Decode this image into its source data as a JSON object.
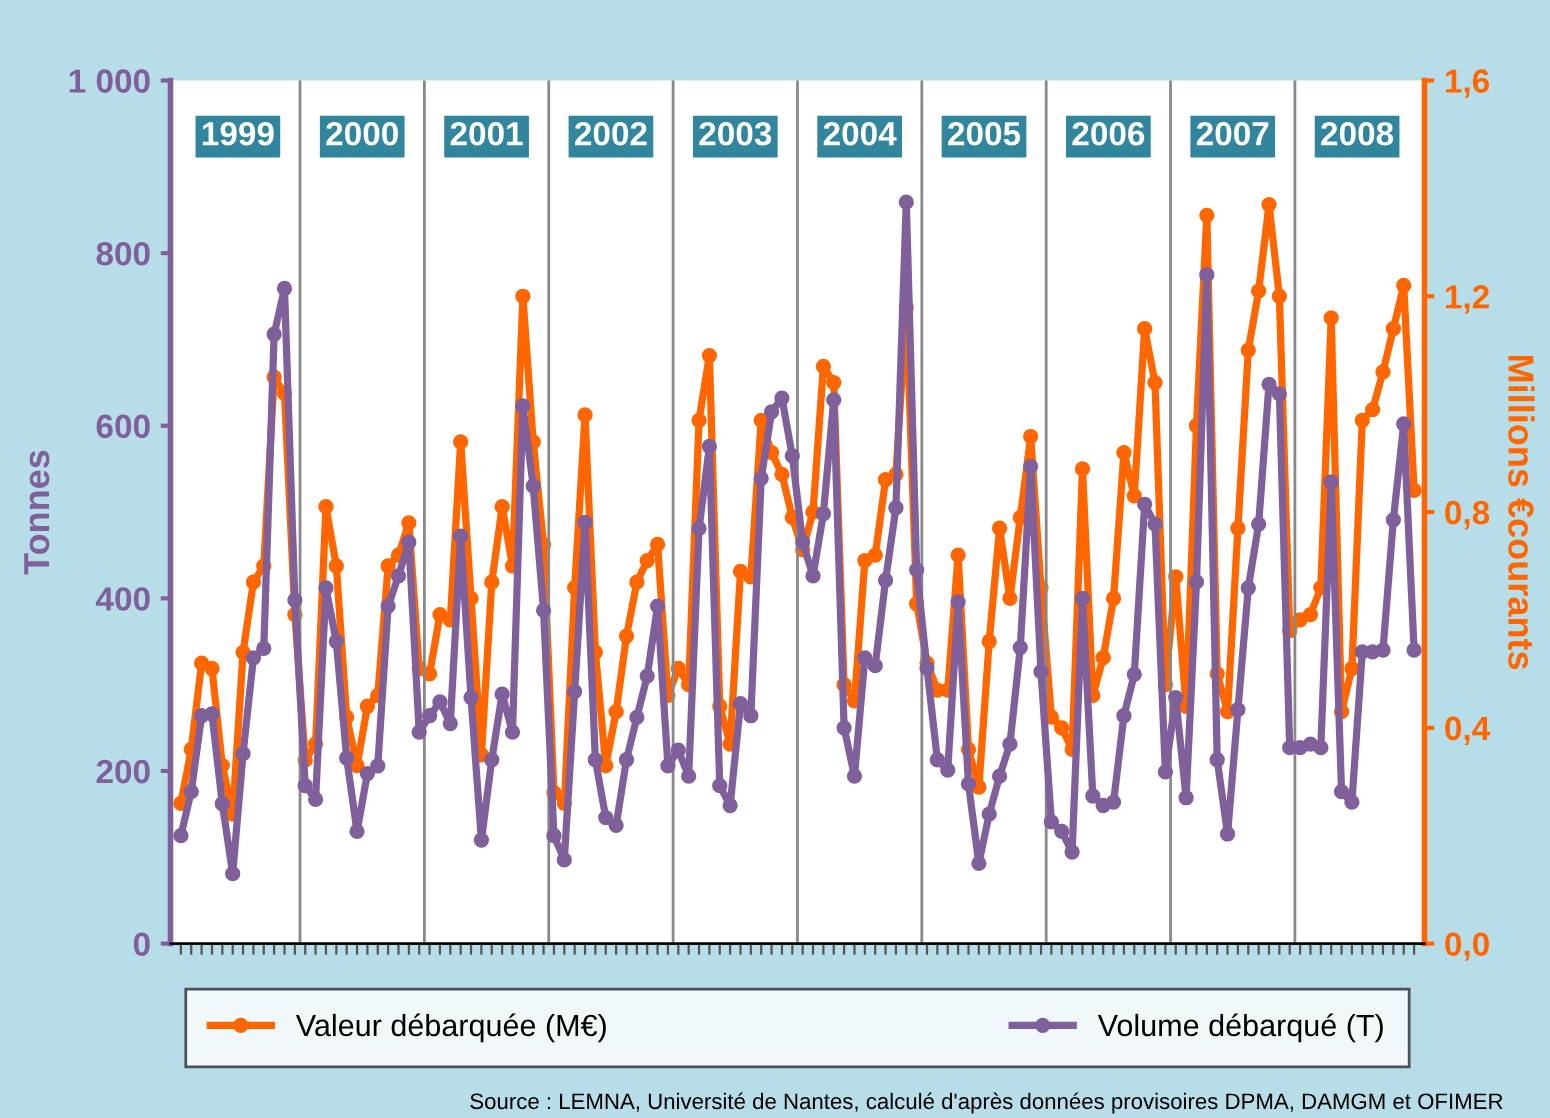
{
  "chart_data": {
    "type": "line",
    "categories": [
      null,
      null,
      null,
      null,
      null,
      null,
      null,
      null,
      null,
      null,
      null,
      null,
      null,
      null,
      null,
      null,
      null,
      null,
      null,
      null,
      null,
      null,
      null,
      null,
      null,
      null,
      null,
      null,
      null,
      null,
      null,
      null,
      null,
      null,
      null,
      null,
      null,
      null,
      null,
      null,
      null,
      null,
      null,
      null,
      null,
      null,
      null,
      null,
      null,
      null,
      null,
      null,
      null,
      null,
      null,
      null,
      null,
      null,
      null,
      null,
      null,
      null,
      null,
      null,
      null,
      null,
      null,
      null,
      null,
      null,
      null,
      null,
      null,
      null,
      null,
      null,
      null,
      null,
      null,
      null,
      null,
      null,
      null,
      null,
      null,
      null,
      null,
      null,
      null,
      null,
      null,
      null,
      null,
      null,
      null,
      null,
      null,
      null,
      null,
      null,
      null,
      null,
      null,
      null,
      null,
      null,
      null,
      null,
      null,
      null,
      null,
      null,
      null,
      null,
      null,
      null,
      null,
      null,
      null,
      null
    ],
    "series": [
      {
        "name": "Valeur débarquée (M€)",
        "color": "#ff6600",
        "axis": "y2",
        "values": [
          0.26,
          0.36,
          0.52,
          0.51,
          0.33,
          0.24,
          0.54,
          0.67,
          0.7,
          1.05,
          1.02,
          0.61,
          0.34,
          0.37,
          0.81,
          0.7,
          0.42,
          0.33,
          0.44,
          0.46,
          0.7,
          0.72,
          0.78,
          0.51,
          0.5,
          0.61,
          0.6,
          0.93,
          0.64,
          0.35,
          0.67,
          0.81,
          0.7,
          1.2,
          0.93,
          0.74,
          0.28,
          0.26,
          0.66,
          0.98,
          0.54,
          0.33,
          0.43,
          0.57,
          0.67,
          0.71,
          0.74,
          0.46,
          0.51,
          0.48,
          0.97,
          1.09,
          0.44,
          0.37,
          0.69,
          0.68,
          0.97,
          0.91,
          0.87,
          0.79,
          0.73,
          0.8,
          1.07,
          1.04,
          0.48,
          0.45,
          0.71,
          0.72,
          0.86,
          0.87,
          1.18,
          0.63,
          0.52,
          0.47,
          0.47,
          0.72,
          0.36,
          0.29,
          0.56,
          0.77,
          0.64,
          0.79,
          0.94,
          0.66,
          0.42,
          0.4,
          0.36,
          0.88,
          0.46,
          0.53,
          0.64,
          0.91,
          0.83,
          1.14,
          1.04,
          0.48,
          0.68,
          0.44,
          0.96,
          1.35,
          0.5,
          0.43,
          0.77,
          1.1,
          1.21,
          1.37,
          1.2,
          0.58,
          0.6,
          0.61,
          0.66,
          1.16,
          0.43,
          0.51,
          0.97,
          0.99,
          1.06,
          1.14,
          1.22,
          0.84
        ]
      },
      {
        "name": "Volume débarqué (T)",
        "color": "#7f609a",
        "values": [
          125,
          176,
          264,
          266,
          162,
          81,
          220,
          331,
          342,
          706,
          759,
          398,
          183,
          167,
          412,
          350,
          215,
          130,
          197,
          206,
          391,
          426,
          465,
          245,
          264,
          280,
          255,
          472,
          285,
          120,
          213,
          289,
          245,
          623,
          530,
          386,
          125,
          97,
          292,
          488,
          213,
          146,
          137,
          213,
          262,
          310,
          391,
          206,
          224,
          194,
          481,
          576,
          183,
          160,
          278,
          264,
          539,
          616,
          632,
          565,
          465,
          426,
          498,
          630,
          250,
          194,
          331,
          322,
          421,
          505,
          859,
          433,
          319,
          213,
          201,
          396,
          185,
          93,
          150,
          194,
          231,
          343,
          553,
          315,
          141,
          130,
          106,
          400,
          171,
          160,
          164,
          264,
          312,
          509,
          486,
          199,
          285,
          169,
          419,
          775,
          213,
          127,
          271,
          412,
          486,
          648,
          637,
          227,
          227,
          231,
          227,
          535,
          176,
          164,
          338,
          338,
          340,
          491,
          602,
          340
        ]
      }
    ],
    "ylabel": "Tonnes",
    "y2label": "Millions €courants",
    "ylim": [
      0,
      1000
    ],
    "yticks": [
      0,
      200,
      400,
      600,
      800,
      {
        "value": 1000,
        "label": "1 000"
      }
    ],
    "y2lim": [
      0,
      1.6
    ],
    "y2ticks": [
      {
        "value": 0,
        "label": "0,0"
      },
      {
        "value": 0.4,
        "label": "0,4"
      },
      {
        "value": 0.8,
        "label": "0,8"
      },
      {
        "value": 1.2,
        "label": "1,2"
      },
      {
        "value": 1.6,
        "label": "1,6"
      }
    ],
    "annotations": [
      "1999",
      "2000",
      "2001",
      "2002",
      "2003",
      "2004",
      "2005",
      "2006",
      "2007",
      "2008",
      "Source : LEMNA, Université de Nantes, calculé d'après données provisoires DPMA, DAMGM et OFIMER"
    ],
    "marker": "circle",
    "line_style": "solid",
    "grid": false,
    "legend": "bottom"
  }
}
